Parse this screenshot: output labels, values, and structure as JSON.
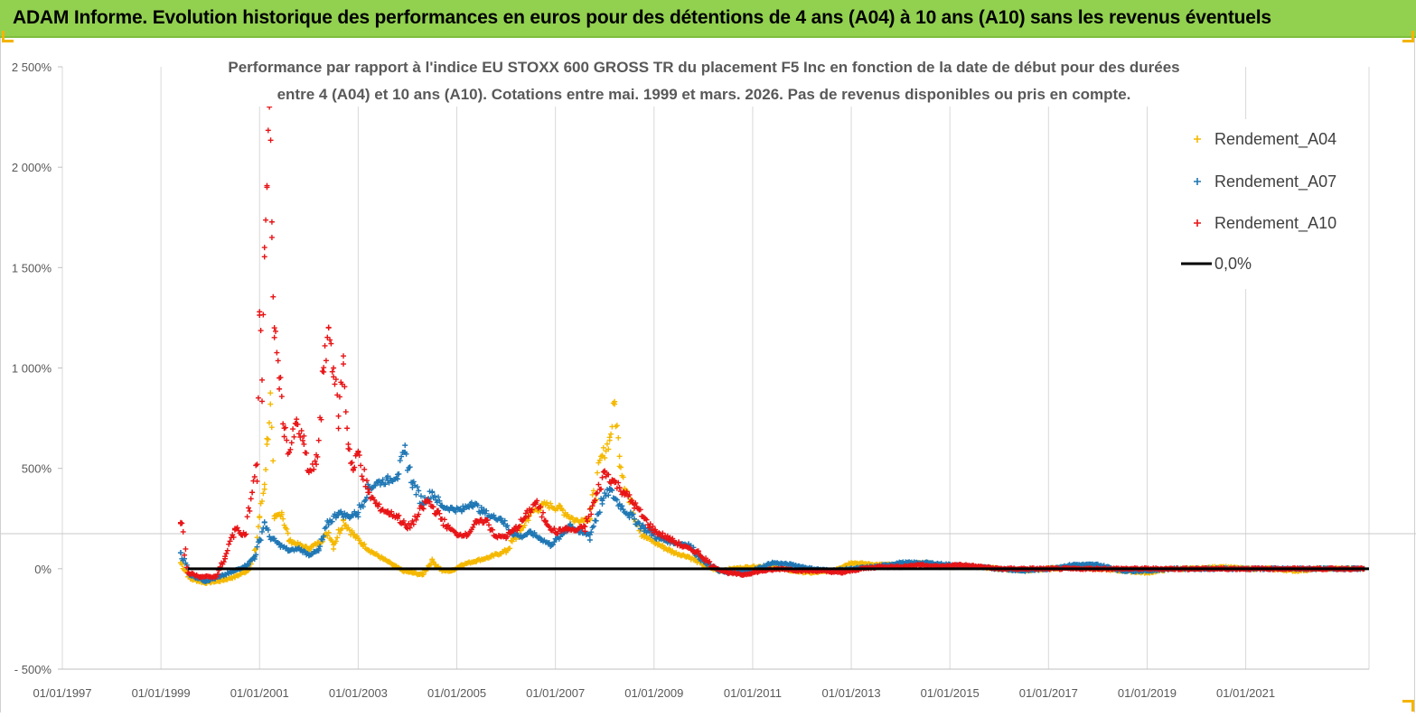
{
  "banner": {
    "title": "ADAM Informe. Evolution historique des performances en euros pour des détentions de 4 ans (A04) à 10 ans (A10) sans les revenus éventuels",
    "background": "#92d050"
  },
  "chart_data": {
    "type": "scatter",
    "title_line1": "Performance par rapport à l'indice EU STOXX 600 GROSS TR  du placement F5 Inc en fonction de la date de début pour des durées",
    "title_line2": "entre 4 (A04) et 10 ans (A10). Cotations entre mai. 1999 et mars. 2026. Pas de revenus disponibles ou pris  en compte.",
    "xlabel": "",
    "ylabel": "",
    "xlim": [
      1997.0,
      2023.5
    ],
    "ylim": [
      -500,
      2500
    ],
    "x_ticks": [
      1997,
      1999,
      2001,
      2003,
      2005,
      2007,
      2009,
      2011,
      2013,
      2015,
      2017,
      2019,
      2021
    ],
    "x_tick_labels": [
      "01/01/1997",
      "01/01/1999",
      "01/01/2001",
      "01/01/2003",
      "01/01/2005",
      "01/01/2007",
      "01/01/2009",
      "01/01/2011",
      "01/01/2013",
      "01/01/2015",
      "01/01/2017",
      "01/01/2019",
      "01/01/2021"
    ],
    "y_ticks": [
      -500,
      0,
      500,
      1000,
      1500,
      2000,
      2500
    ],
    "y_tick_labels": [
      "- 500%",
      "0%",
      "500%",
      "1 000%",
      "1 500%",
      "2 000%",
      "2 500%"
    ],
    "legend_position": "top-right",
    "series": [
      {
        "name": "Rendement_A04",
        "color": "#f5b800",
        "marker": "+",
        "points": [
          [
            1999.4,
            30
          ],
          [
            1999.6,
            -50
          ],
          [
            1999.9,
            -70
          ],
          [
            2000.2,
            -60
          ],
          [
            2000.5,
            -40
          ],
          [
            2000.75,
            -10
          ],
          [
            2000.9,
            60
          ],
          [
            2001.0,
            260
          ],
          [
            2001.1,
            420
          ],
          [
            2001.15,
            620
          ],
          [
            2001.22,
            820
          ],
          [
            2001.3,
            250
          ],
          [
            2001.45,
            280
          ],
          [
            2001.6,
            140
          ],
          [
            2001.8,
            120
          ],
          [
            2002.0,
            100
          ],
          [
            2002.2,
            130
          ],
          [
            2002.4,
            180
          ],
          [
            2002.5,
            120
          ],
          [
            2002.7,
            240
          ],
          [
            2002.9,
            170
          ],
          [
            2003.1,
            120
          ],
          [
            2003.3,
            80
          ],
          [
            2003.5,
            50
          ],
          [
            2003.7,
            20
          ],
          [
            2003.9,
            -10
          ],
          [
            2004.1,
            -20
          ],
          [
            2004.3,
            -30
          ],
          [
            2004.5,
            40
          ],
          [
            2004.7,
            -10
          ],
          [
            2004.9,
            -10
          ],
          [
            2005.1,
            20
          ],
          [
            2005.4,
            40
          ],
          [
            2005.7,
            60
          ],
          [
            2006.0,
            90
          ],
          [
            2006.3,
            190
          ],
          [
            2006.5,
            280
          ],
          [
            2006.8,
            320
          ],
          [
            2007.1,
            300
          ],
          [
            2007.4,
            240
          ],
          [
            2007.7,
            250
          ],
          [
            2007.95,
            560
          ],
          [
            2008.1,
            640
          ],
          [
            2008.2,
            820
          ],
          [
            2008.3,
            560
          ],
          [
            2008.5,
            330
          ],
          [
            2008.8,
            160
          ],
          [
            2009.1,
            120
          ],
          [
            2009.4,
            80
          ],
          [
            2009.7,
            60
          ],
          [
            2010.0,
            20
          ],
          [
            2010.3,
            -10
          ],
          [
            2010.6,
            0
          ],
          [
            2011.0,
            10
          ],
          [
            2011.4,
            10
          ],
          [
            2011.8,
            -10
          ],
          [
            2012.2,
            -20
          ],
          [
            2012.6,
            -10
          ],
          [
            2013.0,
            30
          ],
          [
            2013.5,
            20
          ],
          [
            2014.0,
            20
          ],
          [
            2014.5,
            30
          ],
          [
            2015.0,
            10
          ],
          [
            2015.5,
            10
          ],
          [
            2016.0,
            0
          ],
          [
            2016.5,
            -10
          ],
          [
            2017.0,
            0
          ],
          [
            2017.5,
            10
          ],
          [
            2018.0,
            0
          ],
          [
            2018.5,
            -10
          ],
          [
            2019.0,
            -20
          ],
          [
            2019.5,
            0
          ],
          [
            2020.0,
            0
          ],
          [
            2020.5,
            10
          ],
          [
            2021.0,
            0
          ],
          [
            2021.5,
            0
          ],
          [
            2022.0,
            -10
          ],
          [
            2022.5,
            0
          ],
          [
            2023.0,
            0
          ],
          [
            2023.4,
            0
          ]
        ]
      },
      {
        "name": "Rendement_A07",
        "color": "#1f77b4",
        "marker": "+",
        "points": [
          [
            1999.4,
            80
          ],
          [
            1999.6,
            -30
          ],
          [
            1999.9,
            -60
          ],
          [
            2000.2,
            -40
          ],
          [
            2000.5,
            -10
          ],
          [
            2000.75,
            20
          ],
          [
            2000.9,
            60
          ],
          [
            2001.0,
            140
          ],
          [
            2001.1,
            230
          ],
          [
            2001.2,
            160
          ],
          [
            2001.4,
            120
          ],
          [
            2001.6,
            90
          ],
          [
            2001.8,
            100
          ],
          [
            2002.0,
            70
          ],
          [
            2002.2,
            90
          ],
          [
            2002.4,
            230
          ],
          [
            2002.6,
            280
          ],
          [
            2002.8,
            260
          ],
          [
            2003.0,
            280
          ],
          [
            2003.2,
            400
          ],
          [
            2003.4,
            430
          ],
          [
            2003.6,
            440
          ],
          [
            2003.8,
            470
          ],
          [
            2003.95,
            580
          ],
          [
            2004.1,
            430
          ],
          [
            2004.3,
            330
          ],
          [
            2004.5,
            380
          ],
          [
            2004.7,
            310
          ],
          [
            2004.9,
            300
          ],
          [
            2005.1,
            290
          ],
          [
            2005.3,
            330
          ],
          [
            2005.5,
            290
          ],
          [
            2005.7,
            260
          ],
          [
            2005.9,
            250
          ],
          [
            2006.1,
            180
          ],
          [
            2006.3,
            160
          ],
          [
            2006.5,
            180
          ],
          [
            2006.7,
            150
          ],
          [
            2006.9,
            120
          ],
          [
            2007.1,
            160
          ],
          [
            2007.3,
            220
          ],
          [
            2007.5,
            180
          ],
          [
            2007.7,
            170
          ],
          [
            2007.95,
            340
          ],
          [
            2008.1,
            390
          ],
          [
            2008.3,
            320
          ],
          [
            2008.5,
            270
          ],
          [
            2008.8,
            200
          ],
          [
            2009.1,
            150
          ],
          [
            2009.4,
            130
          ],
          [
            2009.7,
            120
          ],
          [
            2010.0,
            40
          ],
          [
            2010.3,
            -10
          ],
          [
            2010.6,
            -20
          ],
          [
            2011.0,
            -10
          ],
          [
            2011.4,
            30
          ],
          [
            2011.8,
            20
          ],
          [
            2012.2,
            0
          ],
          [
            2012.6,
            -10
          ],
          [
            2013.0,
            0
          ],
          [
            2013.5,
            10
          ],
          [
            2014.0,
            30
          ],
          [
            2014.5,
            30
          ],
          [
            2015.0,
            20
          ],
          [
            2015.5,
            10
          ],
          [
            2016.0,
            0
          ],
          [
            2016.5,
            -10
          ],
          [
            2017.0,
            0
          ],
          [
            2017.5,
            20
          ],
          [
            2018.0,
            20
          ],
          [
            2018.5,
            -10
          ],
          [
            2019.0,
            -10
          ],
          [
            2019.5,
            0
          ],
          [
            2020.0,
            0
          ],
          [
            2020.5,
            0
          ],
          [
            2021.0,
            0
          ],
          [
            2021.5,
            0
          ],
          [
            2022.0,
            0
          ],
          [
            2022.5,
            0
          ],
          [
            2023.0,
            0
          ],
          [
            2023.4,
            0
          ]
        ]
      },
      {
        "name": "Rendement_A10",
        "color": "#e81416",
        "marker": "+",
        "points": [
          [
            1999.4,
            230
          ],
          [
            1999.55,
            -20
          ],
          [
            1999.8,
            -40
          ],
          [
            2000.1,
            -40
          ],
          [
            2000.3,
            50
          ],
          [
            2000.5,
            200
          ],
          [
            2000.7,
            170
          ],
          [
            2000.85,
            380
          ],
          [
            2000.95,
            520
          ],
          [
            2001.0,
            1280
          ],
          [
            2001.05,
            940
          ],
          [
            2001.1,
            1600
          ],
          [
            2001.15,
            1900
          ],
          [
            2001.2,
            2300
          ],
          [
            2001.25,
            1650
          ],
          [
            2001.3,
            1200
          ],
          [
            2001.4,
            950
          ],
          [
            2001.5,
            700
          ],
          [
            2001.6,
            580
          ],
          [
            2001.75,
            720
          ],
          [
            2001.9,
            620
          ],
          [
            2002.0,
            480
          ],
          [
            2002.15,
            520
          ],
          [
            2002.3,
            980
          ],
          [
            2002.4,
            1200
          ],
          [
            2002.5,
            1000
          ],
          [
            2002.6,
            760
          ],
          [
            2002.7,
            1020
          ],
          [
            2002.8,
            620
          ],
          [
            2002.9,
            490
          ],
          [
            2003.0,
            580
          ],
          [
            2003.2,
            380
          ],
          [
            2003.4,
            310
          ],
          [
            2003.6,
            280
          ],
          [
            2003.8,
            260
          ],
          [
            2004.0,
            200
          ],
          [
            2004.2,
            260
          ],
          [
            2004.4,
            340
          ],
          [
            2004.6,
            280
          ],
          [
            2004.8,
            210
          ],
          [
            2005.0,
            170
          ],
          [
            2005.2,
            170
          ],
          [
            2005.4,
            230
          ],
          [
            2005.6,
            240
          ],
          [
            2005.8,
            160
          ],
          [
            2006.0,
            160
          ],
          [
            2006.2,
            200
          ],
          [
            2006.4,
            260
          ],
          [
            2006.6,
            330
          ],
          [
            2006.8,
            240
          ],
          [
            2007.0,
            180
          ],
          [
            2007.2,
            200
          ],
          [
            2007.4,
            190
          ],
          [
            2007.6,
            210
          ],
          [
            2007.8,
            340
          ],
          [
            2008.0,
            480
          ],
          [
            2008.2,
            430
          ],
          [
            2008.4,
            380
          ],
          [
            2008.6,
            320
          ],
          [
            2008.8,
            250
          ],
          [
            2009.0,
            190
          ],
          [
            2009.3,
            150
          ],
          [
            2009.6,
            110
          ],
          [
            2009.9,
            80
          ],
          [
            2010.2,
            10
          ],
          [
            2010.5,
            -20
          ],
          [
            2010.8,
            -30
          ],
          [
            2011.2,
            -10
          ],
          [
            2011.6,
            0
          ],
          [
            2012.0,
            -10
          ],
          [
            2012.4,
            -10
          ],
          [
            2012.8,
            -20
          ],
          [
            2013.2,
            0
          ],
          [
            2013.6,
            10
          ],
          [
            2014.0,
            10
          ],
          [
            2014.4,
            20
          ],
          [
            2014.8,
            10
          ],
          [
            2015.2,
            20
          ],
          [
            2015.6,
            10
          ],
          [
            2016.0,
            0
          ],
          [
            2016.5,
            0
          ],
          [
            2017.0,
            0
          ],
          [
            2017.5,
            0
          ],
          [
            2018.0,
            0
          ],
          [
            2018.5,
            0
          ],
          [
            2019.0,
            0
          ],
          [
            2019.5,
            0
          ],
          [
            2020.0,
            0
          ],
          [
            2020.5,
            0
          ],
          [
            2021.0,
            0
          ],
          [
            2021.5,
            0
          ],
          [
            2022.0,
            0
          ],
          [
            2022.5,
            0
          ],
          [
            2023.0,
            0
          ],
          [
            2023.4,
            0
          ]
        ]
      },
      {
        "name": "0,0%",
        "color": "#000000",
        "marker": "line",
        "x_range": [
          1999.55,
          2023.5
        ],
        "value": 0
      }
    ]
  }
}
